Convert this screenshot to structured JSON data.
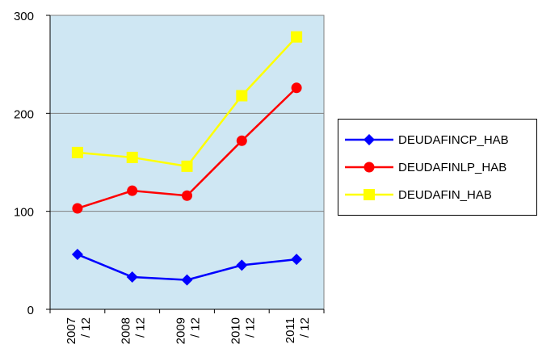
{
  "chart_data": {
    "type": "line",
    "title": "",
    "xlabel": "",
    "ylabel": "",
    "categories": [
      "2007 / 12",
      "2008 / 12",
      "2009 / 12",
      "2010 / 12",
      "2011 / 12"
    ],
    "category_lines": [
      [
        "2007",
        "/ 12"
      ],
      [
        "2008",
        "/ 12"
      ],
      [
        "2009",
        "/ 12"
      ],
      [
        "2010",
        "/ 12"
      ],
      [
        "2011",
        "/ 12"
      ]
    ],
    "ylim": [
      0,
      300
    ],
    "yticks": [
      0,
      100,
      200,
      300
    ],
    "grid": true,
    "legend_position": "right",
    "plot_background": "#cfe7f3",
    "series": [
      {
        "name": "DEUDAFINCP_HAB",
        "color": "#0000ff",
        "marker": "diamond",
        "values": [
          56,
          33,
          30,
          45,
          51
        ]
      },
      {
        "name": "DEUDAFINLP_HAB",
        "color": "#ff0000",
        "marker": "circle",
        "values": [
          103,
          121,
          116,
          172,
          226
        ]
      },
      {
        "name": "DEUDAFIN_HAB",
        "color": "#ffff00",
        "marker": "square",
        "values": [
          160,
          155,
          146,
          218,
          278
        ]
      }
    ]
  }
}
